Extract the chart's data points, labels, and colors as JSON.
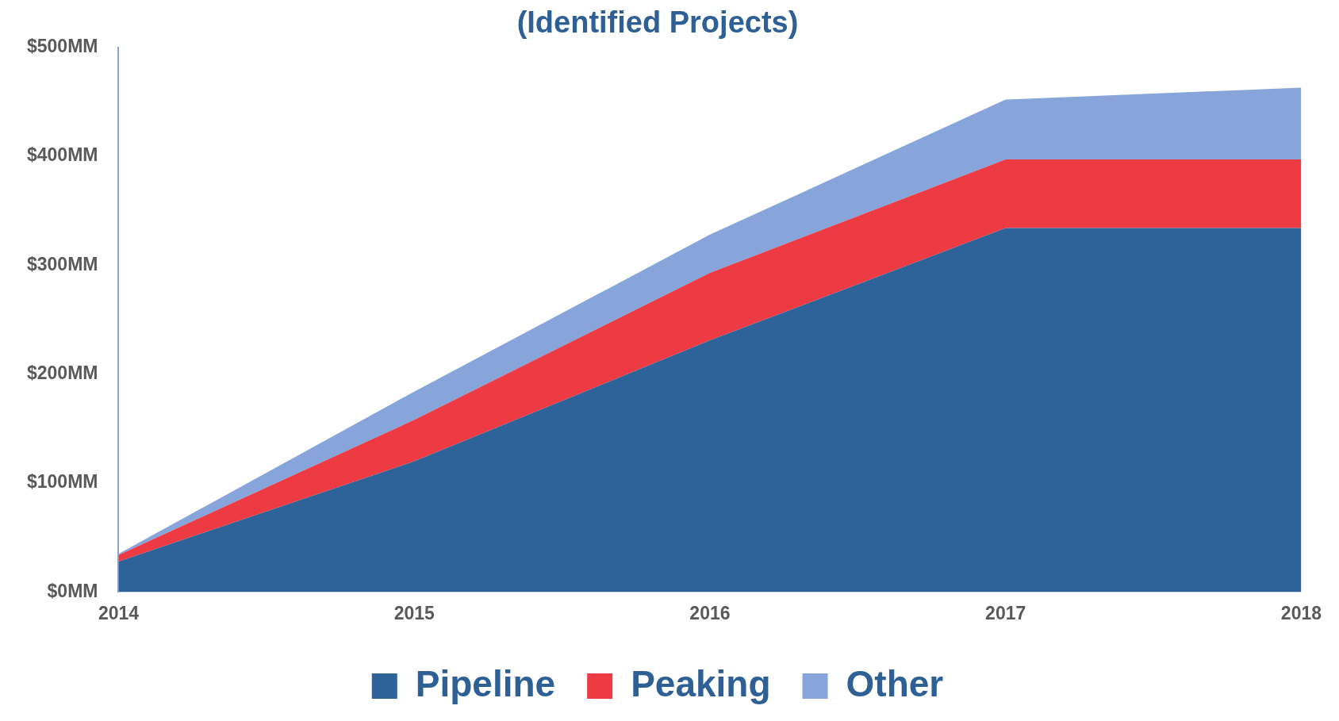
{
  "chart_data": {
    "type": "area",
    "title": "(Identified Projects)",
    "categories": [
      "2014",
      "2015",
      "2016",
      "2017",
      "2018"
    ],
    "stacked": true,
    "series": [
      {
        "name": "Pipeline",
        "color": "#2e6399",
        "values": [
          28,
          120,
          231,
          334,
          334
        ]
      },
      {
        "name": "Peaking",
        "color": "#ee3a43",
        "values": [
          6,
          38,
          62,
          63,
          63
        ]
      },
      {
        "name": "Other",
        "color": "#87a5da",
        "values": [
          1,
          26,
          35,
          55,
          66
        ]
      }
    ],
    "ylim": [
      0,
      500
    ],
    "yticks": [
      {
        "value": 0,
        "label": "$0MM"
      },
      {
        "value": 100,
        "label": "$100MM"
      },
      {
        "value": 200,
        "label": "$200MM"
      },
      {
        "value": 300,
        "label": "$300MM"
      },
      {
        "value": 400,
        "label": "$400MM"
      },
      {
        "value": 500,
        "label": "$500MM"
      }
    ],
    "grid": false,
    "legend": "bottom"
  }
}
